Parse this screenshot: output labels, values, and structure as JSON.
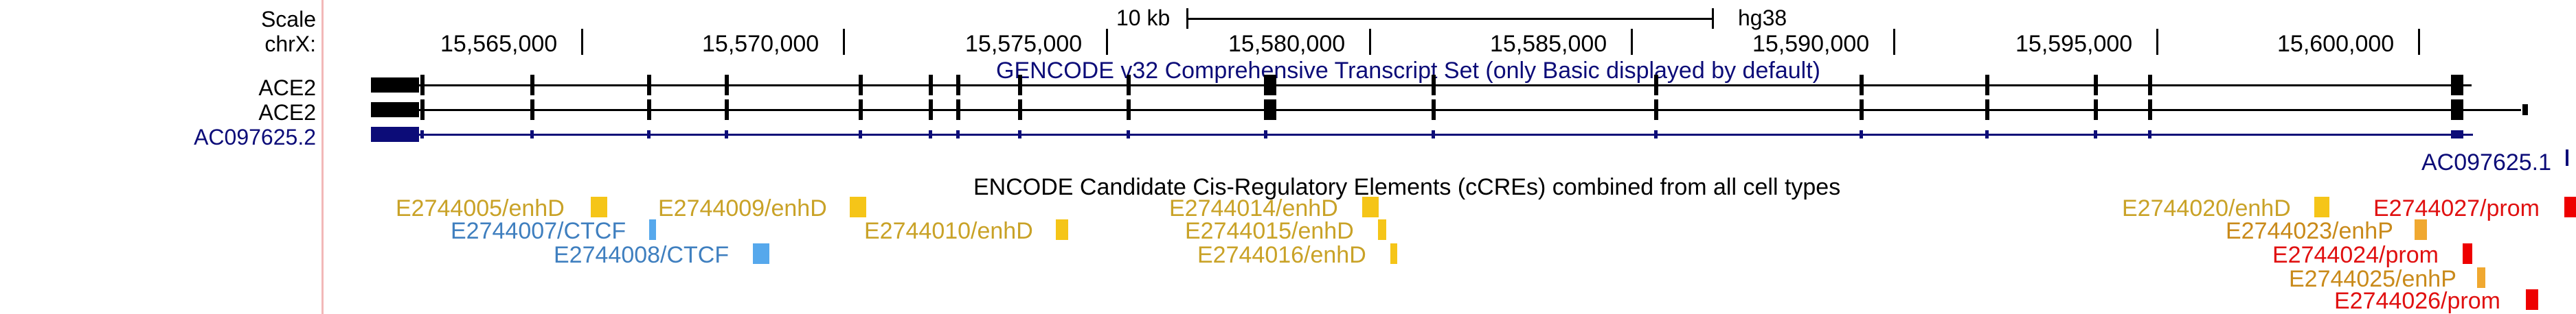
{
  "labels": {
    "scale": "Scale",
    "chrom": "chrX:",
    "genes": [
      "ACE2",
      "ACE2",
      "AC097625.2"
    ]
  },
  "scale_bar": {
    "length_label": "10 kb",
    "assembly": "hg38"
  },
  "ruler_ticks": [
    "15,565,000",
    "15,570,000",
    "15,575,000",
    "15,580,000",
    "15,585,000",
    "15,590,000",
    "15,595,000",
    "15,600,000"
  ],
  "tracks": {
    "gencode_title": "GENCODE v32 Comprehensive Transcript Set (only Basic displayed by default)",
    "encode_title": "ENCODE Candidate Cis-Regulatory Elements (cCREs) combined from all cell types",
    "extra_gene_label": "AC097625.1"
  },
  "colors": {
    "enhD": "#c9a227",
    "enhD_box": "#f5c518",
    "ctcf": "#3f7fbf",
    "ctcf_box": "#56a8ec",
    "enhP": "#c98a1a",
    "enhP_box": "#f0a830",
    "prom": "#e01010",
    "prom_box": "#ee0000",
    "gene_black": "#000000",
    "gene_navy": "#0c0c78",
    "title_navy": "#0c0c78",
    "divider": "#f2b8b8"
  },
  "ccres": [
    {
      "id": "E2744005/enhD",
      "type": "enhD"
    },
    {
      "id": "E2744009/enhD",
      "type": "enhD"
    },
    {
      "id": "E2744007/CTCF",
      "type": "ctcf"
    },
    {
      "id": "E2744008/CTCF",
      "type": "ctcf"
    },
    {
      "id": "E2744010/enhD",
      "type": "enhD"
    },
    {
      "id": "E2744014/enhD",
      "type": "enhD"
    },
    {
      "id": "E2744015/enhD",
      "type": "enhD"
    },
    {
      "id": "E2744016/enhD",
      "type": "enhD"
    },
    {
      "id": "E2744020/enhD",
      "type": "enhD"
    },
    {
      "id": "E2744027/prom",
      "type": "prom"
    },
    {
      "id": "E2744023/enhP",
      "type": "enhP"
    },
    {
      "id": "E2744024/prom",
      "type": "prom"
    },
    {
      "id": "E2744025/enhP",
      "type": "enhP"
    },
    {
      "id": "E2744026/prom",
      "type": "prom"
    }
  ]
}
